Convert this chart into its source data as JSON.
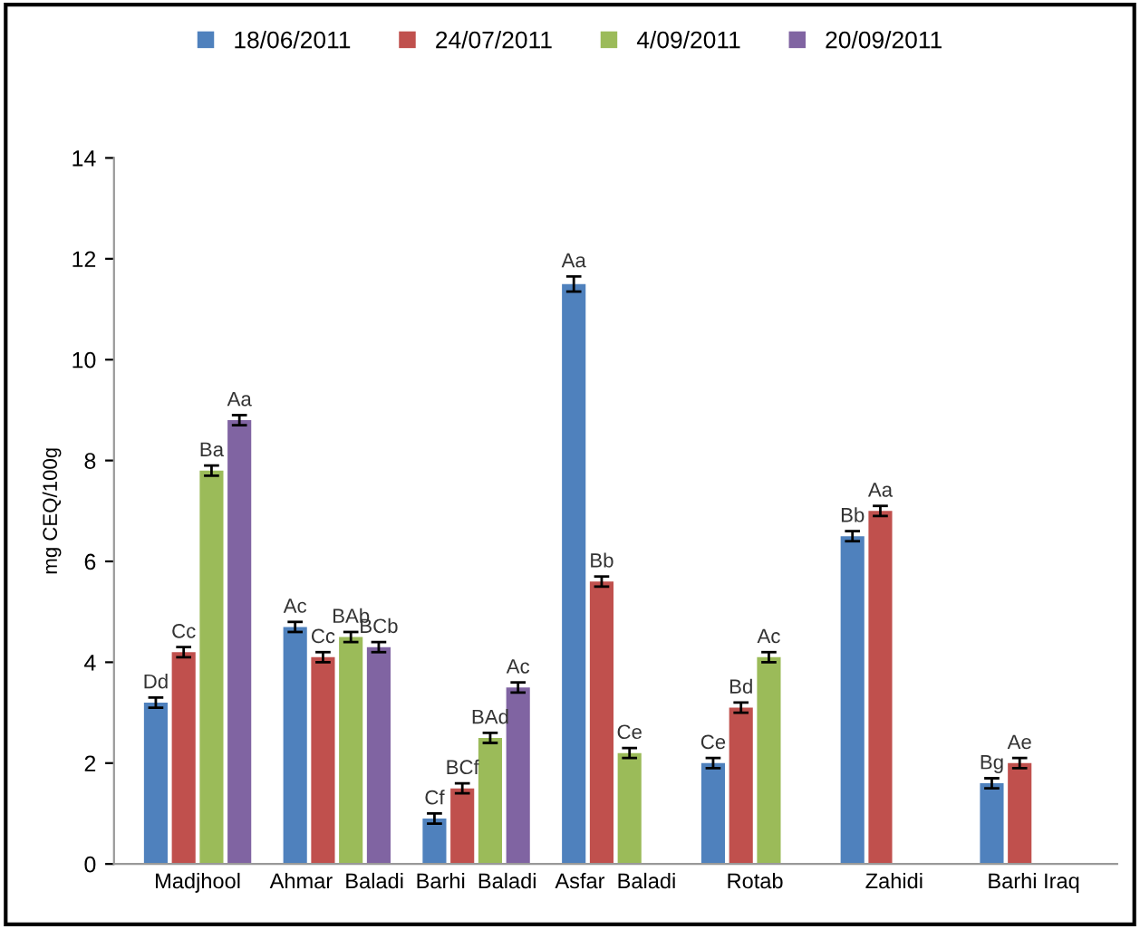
{
  "chart_data": {
    "type": "bar",
    "ylabel": "mg CEQ/100g",
    "categories": [
      "Madjhool",
      "Ahmar  Baladi",
      "Barhi  Baladi",
      "Asfar  Baladi",
      "Rotab",
      "Zahidi",
      "Barhi Iraq"
    ],
    "series": [
      {
        "name": "18/06/2011",
        "color": "#4f81bd",
        "values": [
          3.2,
          4.7,
          0.9,
          11.5,
          2.0,
          6.5,
          1.6
        ],
        "errors": [
          0.1,
          0.1,
          0.1,
          0.15,
          0.1,
          0.1,
          0.1
        ],
        "value_labels": [
          "Dd",
          "Ac",
          "Cf",
          "Aa",
          "Ce",
          "Bb",
          "Bg"
        ]
      },
      {
        "name": "24/07/2011",
        "color": "#c0504d",
        "values": [
          4.2,
          4.1,
          1.5,
          5.6,
          3.1,
          7.0,
          2.0
        ],
        "errors": [
          0.1,
          0.1,
          0.1,
          0.1,
          0.1,
          0.1,
          0.1
        ],
        "value_labels": [
          "Cc",
          "Cc",
          "BCf",
          "Bb",
          "Bd",
          "Aa",
          "Ae"
        ]
      },
      {
        "name": "4/09/2011",
        "color": "#9bbb59",
        "values": [
          7.8,
          4.5,
          2.5,
          2.2,
          4.1,
          null,
          null
        ],
        "errors": [
          0.1,
          0.1,
          0.1,
          0.1,
          0.1,
          null,
          null
        ],
        "value_labels": [
          "Ba",
          "BAb",
          "BAd",
          "Ce",
          "Ac",
          null,
          null
        ]
      },
      {
        "name": "20/09/2011",
        "color": "#8064a2",
        "values": [
          8.8,
          4.3,
          3.5,
          null,
          null,
          null,
          null
        ],
        "errors": [
          0.1,
          0.1,
          0.1,
          null,
          null,
          null,
          null
        ],
        "value_labels": [
          "Aa",
          "BCb",
          "Ac",
          null,
          null,
          null,
          null
        ]
      }
    ],
    "ylim": [
      0,
      14
    ],
    "yticks": [
      0,
      2,
      4,
      6,
      8,
      10,
      12,
      14
    ],
    "grid": false,
    "legend": "top"
  }
}
